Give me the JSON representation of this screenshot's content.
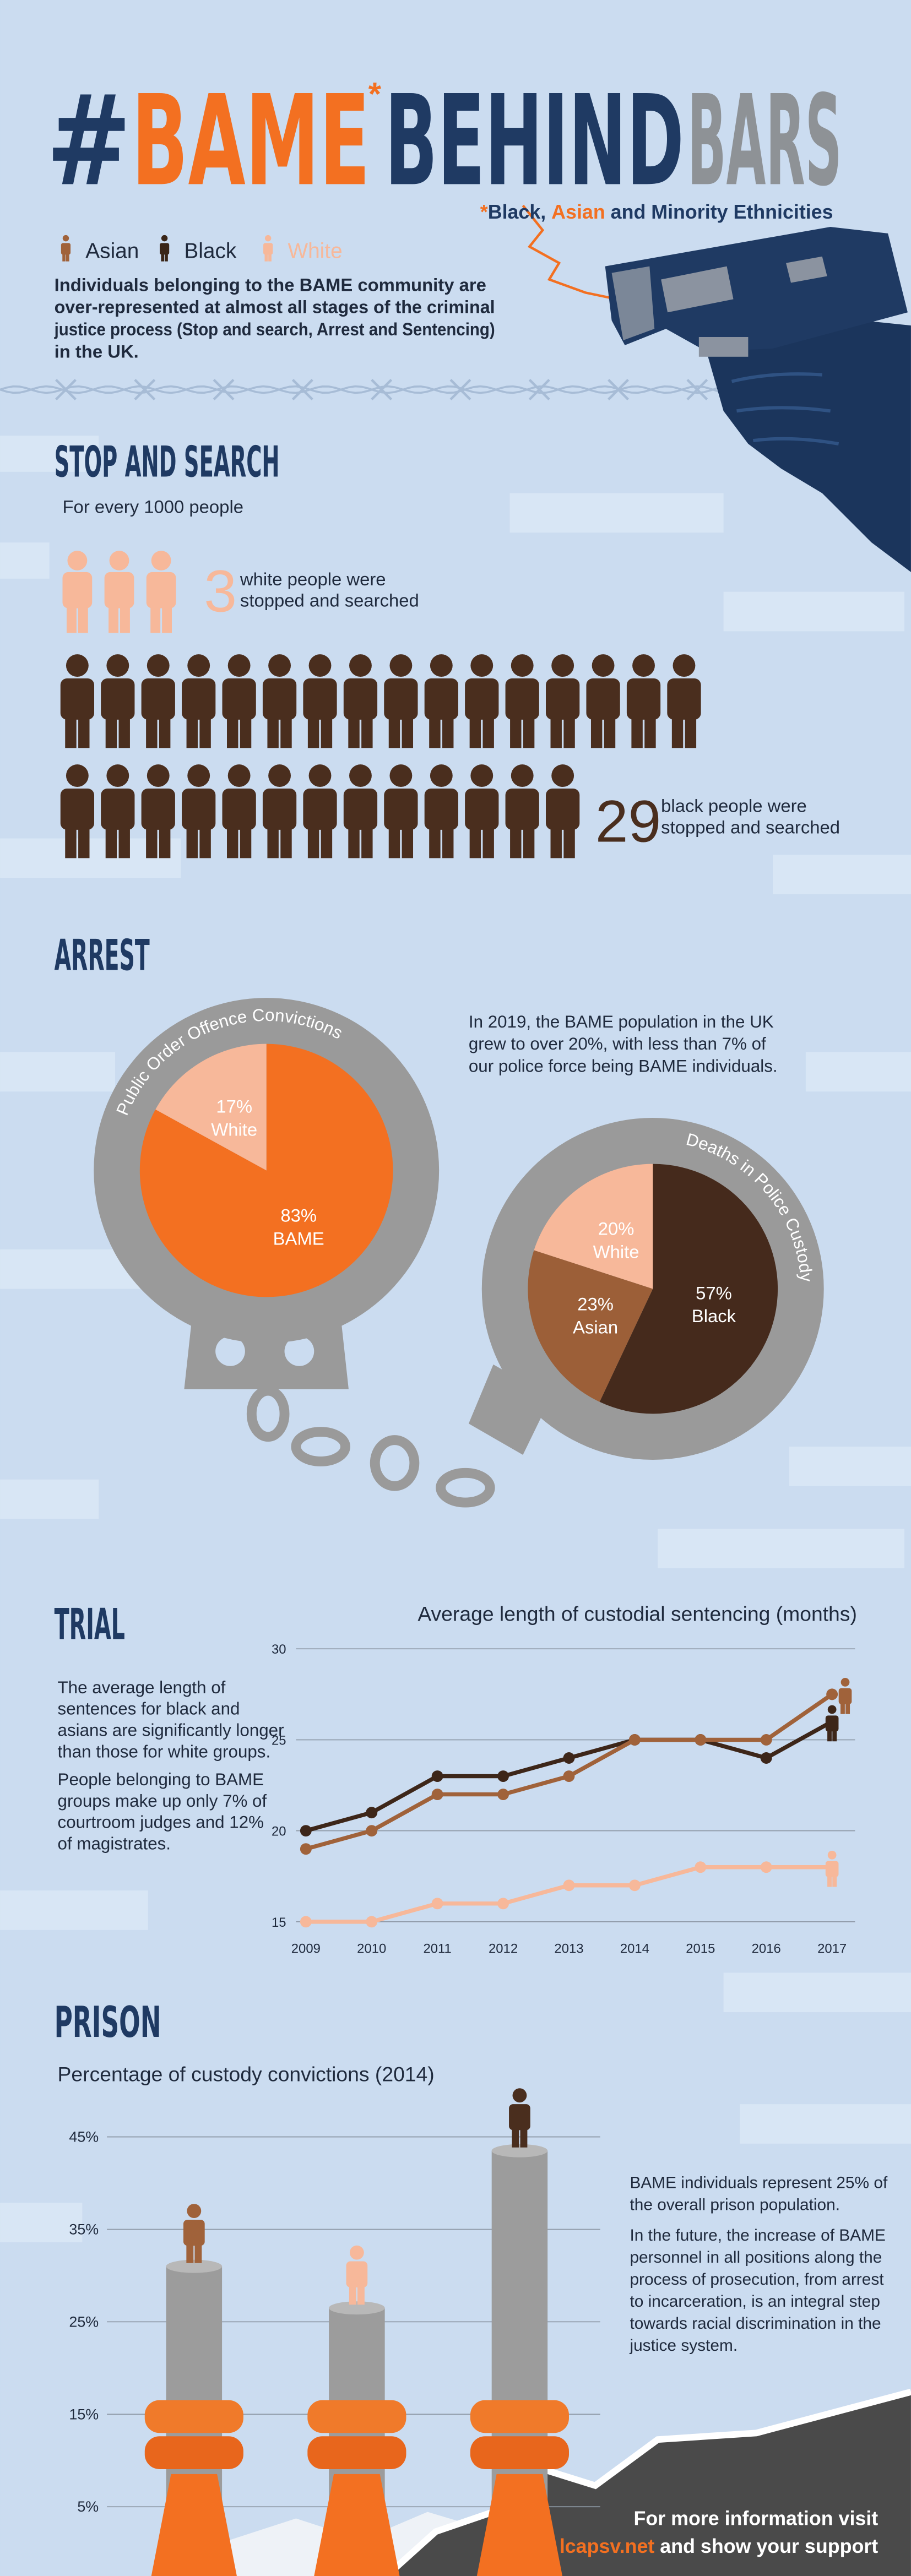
{
  "header": {
    "title": [
      "#",
      "BAME",
      "*",
      "BEHIND",
      "BARS"
    ],
    "subtitle": [
      "*",
      "Black, ",
      "Asian",
      " and Minority Ethnicities"
    ],
    "legend": [
      "Asian",
      "Black",
      "White"
    ],
    "intro": [
      "Individuals belonging to the BAME community are",
      "over-represented at almost all stages of the criminal",
      "justice process (Stop and search, Arrest and Sentencing)",
      "in the UK."
    ]
  },
  "stop_and_search": {
    "title": "STOP AND SEARCH",
    "lead": "For every 1000 people",
    "white": {
      "value": 3,
      "color": "#f7b89a",
      "text": [
        "white people were",
        "stopped and searched"
      ]
    },
    "black": {
      "value": 29,
      "color": "#4a2e1e",
      "text": [
        "black people were",
        "stopped and searched"
      ]
    }
  },
  "arrest": {
    "title": "ARREST",
    "note": [
      "In 2019, the BAME population in the UK",
      "grew to over 20%, with less than 7% of",
      "our police force being BAME individuals."
    ]
  },
  "trial": {
    "title": "TRIAL",
    "text": [
      [
        "The average length of",
        "sentences for black and",
        "asians are significantly longer",
        "than those for white groups."
      ],
      [
        "People belonging to BAME",
        "groups make up only 7% of",
        "courtroom judges and 12%",
        "of magistrates."
      ]
    ]
  },
  "prison": {
    "title": "PRISON",
    "text": [
      [
        "BAME individuals represent 25% of",
        "the overall prison population."
      ],
      [
        "In the future, the increase of BAME",
        "personnel in all positions along the",
        "process of prosecution, from arrest",
        "to incarceration, is an integral step",
        "towards racial discrimination in the",
        "justice system."
      ]
    ]
  },
  "footer": {
    "line1": "For more information visit",
    "link": "lcapsv.net",
    "line2": " and show your support"
  },
  "chart_data": [
    {
      "type": "pie",
      "title": "Public Order Offence Convictions",
      "categories": [
        "BAME",
        "White"
      ],
      "values": [
        83,
        17
      ],
      "value_labels": [
        "83%",
        "17%"
      ],
      "colors": [
        "#f37021",
        "#f7b89a"
      ]
    },
    {
      "type": "pie",
      "title": "Deaths in Police Custody",
      "categories": [
        "Black",
        "Asian",
        "White"
      ],
      "values": [
        57,
        23,
        20
      ],
      "value_labels": [
        "57%",
        "23%",
        "20%"
      ],
      "colors": [
        "#452a1c",
        "#9c5f38",
        "#f7b89a"
      ]
    },
    {
      "type": "line",
      "title": "Average length of custodial sentencing (months)",
      "x": [
        2009,
        2010,
        2011,
        2012,
        2013,
        2014,
        2015,
        2016,
        2017
      ],
      "xlim": [
        2008.85,
        2017.35
      ],
      "xticks": [
        2009,
        2010,
        2011,
        2012,
        2013,
        2014,
        2015,
        2016,
        2017
      ],
      "ylim": [
        15,
        30
      ],
      "yticks": [
        15,
        20,
        25,
        30
      ],
      "grid": true,
      "series": [
        {
          "name": "Black",
          "color": "#3d2619",
          "values": [
            20,
            21,
            23,
            23,
            24,
            25,
            25,
            24,
            26
          ]
        },
        {
          "name": "Asian",
          "color": "#a0623a",
          "values": [
            19,
            20,
            22,
            22,
            23,
            25,
            25,
            25,
            27.5
          ]
        },
        {
          "name": "White",
          "color": "#f7b89a",
          "values": [
            15,
            15,
            16,
            16,
            17,
            17,
            18,
            18,
            18
          ]
        }
      ]
    },
    {
      "type": "bar",
      "title": "Percentage of custody convictions (2014)",
      "values": [
        31,
        26.5,
        43.5
      ],
      "color": "#9c9c9c",
      "figure_colors": [
        "#a0623a",
        "#f7b89a",
        "#4a2e1e"
      ],
      "ylim": [
        0,
        48
      ],
      "yticks": [
        {
          "value": 5,
          "label": "5%"
        },
        {
          "value": 15,
          "label": "15%"
        },
        {
          "value": 25,
          "label": "25%"
        },
        {
          "value": 35,
          "label": "35%"
        },
        {
          "value": 45,
          "label": "45%"
        }
      ],
      "grid": true
    }
  ]
}
